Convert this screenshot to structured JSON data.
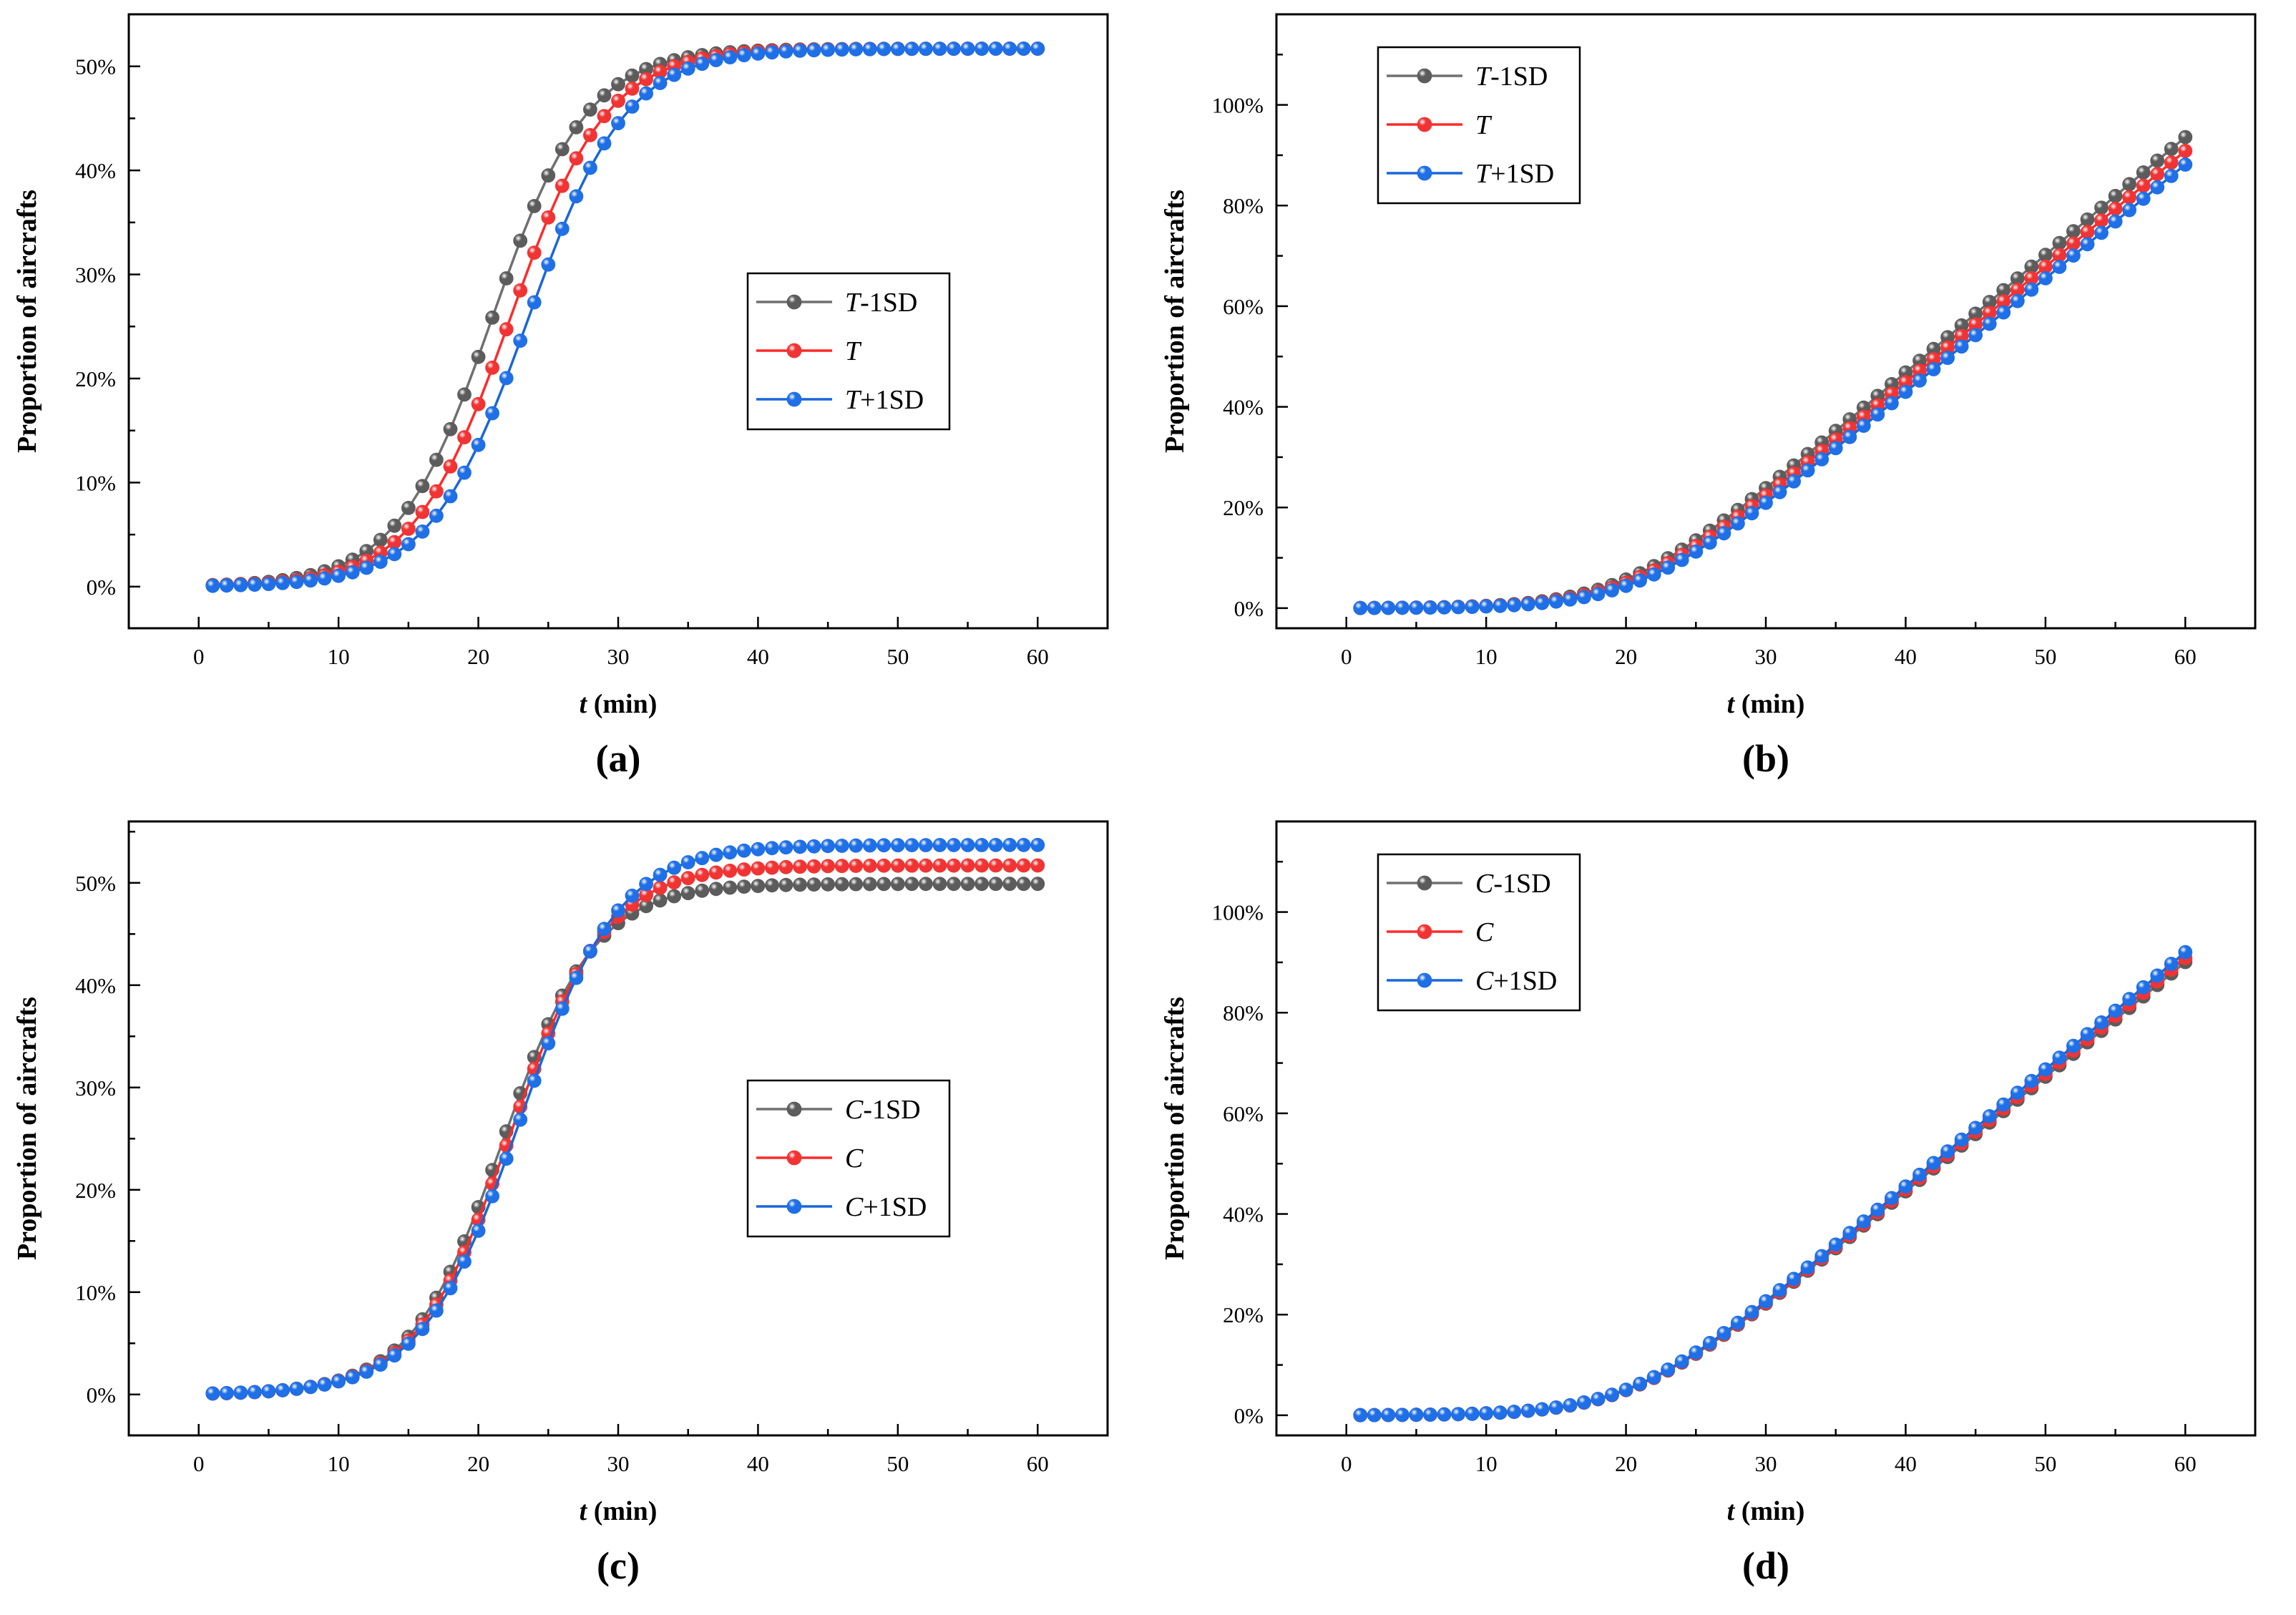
{
  "figure": {
    "panels": [
      "(a)",
      "(b)",
      "(c)",
      "(d)"
    ]
  },
  "chart_data": [
    {
      "type": "line",
      "panel_label": "(a)",
      "xlabel_var": "t",
      "xlabel_unit": " (min)",
      "ylabel": "Proportion of aircrafts",
      "xlim": [
        -5,
        65
      ],
      "ylim": [
        -4,
        55
      ],
      "xticks": [
        0,
        10,
        20,
        30,
        40,
        50,
        60
      ],
      "yticks": [
        0,
        10,
        20,
        30,
        40,
        50
      ],
      "ytick_suffix": "%",
      "legend_position": "center-right",
      "model": "logistic",
      "x": [
        1,
        60,
        1
      ],
      "series": [
        {
          "name_var": "T",
          "name_suffix": "-1SD",
          "color": "#707070",
          "dot": "#5c5c5c",
          "K": 51.7,
          "x0": 21.0,
          "s": 3.4
        },
        {
          "name_var": "T",
          "name_suffix": "",
          "color": "#ff2a2a",
          "dot": "#f03434",
          "K": 51.7,
          "x0": 22.3,
          "s": 3.45
        },
        {
          "name_var": "T",
          "name_suffix": "+1SD",
          "color": "#1a66d8",
          "dot": "#1f6fe6",
          "K": 51.7,
          "x0": 23.6,
          "s": 3.5
        }
      ]
    },
    {
      "type": "line",
      "panel_label": "(b)",
      "xlabel_var": "t",
      "xlabel_unit": " (min)",
      "ylabel": "Proportion of aircrafts",
      "xlim": [
        -5,
        65
      ],
      "ylim": [
        -4,
        118
      ],
      "xticks": [
        0,
        10,
        20,
        30,
        40,
        50,
        60
      ],
      "yticks": [
        0,
        20,
        40,
        60,
        80,
        100
      ],
      "ytick_suffix": "%",
      "legend_position": "top-left",
      "model": "softplus",
      "x": [
        1,
        60,
        1
      ],
      "series": [
        {
          "name_var": "T",
          "name_suffix": "-1SD",
          "color": "#707070",
          "dot": "#5c5c5c",
          "a": 2.34,
          "c": 20.0,
          "b": 3.5
        },
        {
          "name_var": "T",
          "name_suffix": "",
          "color": "#ff2a2a",
          "dot": "#f03434",
          "a": 2.3,
          "c": 20.5,
          "b": 3.5
        },
        {
          "name_var": "T",
          "name_suffix": "+1SD",
          "color": "#1a66d8",
          "dot": "#1f6fe6",
          "a": 2.26,
          "c": 21.0,
          "b": 3.5
        }
      ]
    },
    {
      "type": "line",
      "panel_label": "(c)",
      "xlabel_var": "t",
      "xlabel_unit": " (min)",
      "ylabel": "Proportion of aircrafts",
      "xlim": [
        -5,
        65
      ],
      "ylim": [
        -4,
        56
      ],
      "xticks": [
        0,
        10,
        20,
        30,
        40,
        50,
        60
      ],
      "yticks": [
        0,
        10,
        20,
        30,
        40,
        50
      ],
      "ytick_suffix": "%",
      "legend_position": "center-right",
      "model": "logistic",
      "x": [
        1,
        60,
        1
      ],
      "series": [
        {
          "name_var": "C",
          "name_suffix": "-1SD",
          "color": "#707070",
          "dot": "#5c5c5c",
          "K": 49.9,
          "x0": 21.8,
          "s": 3.3
        },
        {
          "name_var": "C",
          "name_suffix": "",
          "color": "#ff2a2a",
          "dot": "#f03434",
          "K": 51.7,
          "x0": 22.4,
          "s": 3.4
        },
        {
          "name_var": "C",
          "name_suffix": "+1SD",
          "color": "#1a66d8",
          "dot": "#1f6fe6",
          "K": 53.7,
          "x0": 23.0,
          "s": 3.5
        }
      ]
    },
    {
      "type": "line",
      "panel_label": "(d)",
      "xlabel_var": "t",
      "xlabel_unit": " (min)",
      "ylabel": "Proportion of aircrafts",
      "xlim": [
        -5,
        65
      ],
      "ylim": [
        -4,
        118
      ],
      "xticks": [
        0,
        10,
        20,
        30,
        40,
        50,
        60
      ],
      "yticks": [
        0,
        20,
        40,
        60,
        80,
        100
      ],
      "ytick_suffix": "%",
      "legend_position": "top-left",
      "model": "softplus",
      "x": [
        1,
        60,
        1
      ],
      "series": [
        {
          "name_var": "C",
          "name_suffix": "-1SD",
          "color": "#707070",
          "dot": "#5c5c5c",
          "a": 2.28,
          "c": 20.5,
          "b": 3.5
        },
        {
          "name_var": "C",
          "name_suffix": "",
          "color": "#ff2a2a",
          "dot": "#f03434",
          "a": 2.3,
          "c": 20.5,
          "b": 3.5
        },
        {
          "name_var": "C",
          "name_suffix": "+1SD",
          "color": "#1a66d8",
          "dot": "#1f6fe6",
          "a": 2.33,
          "c": 20.5,
          "b": 3.5
        }
      ]
    }
  ]
}
